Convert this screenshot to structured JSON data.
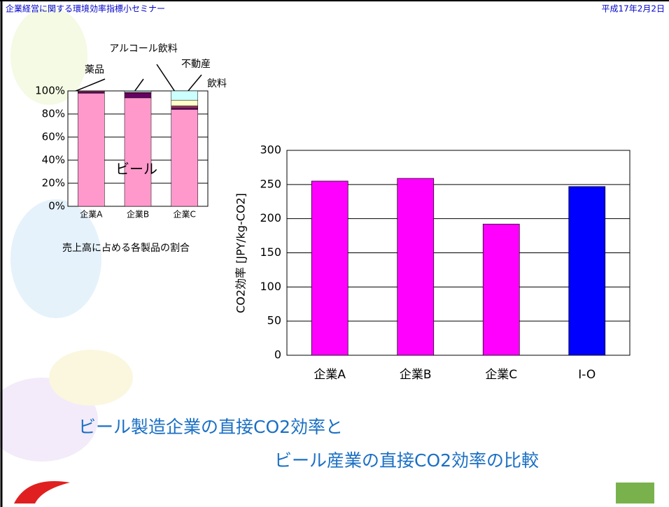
{
  "header": {
    "left": "企業経営に関する環境効率指標小セミナー",
    "right": "平成17年2月2日"
  },
  "chart_data": [
    {
      "type": "stacked-bar",
      "caption": "売上高に占める各製品の割合",
      "categories": [
        "企業A",
        "企業B",
        "企業C"
      ],
      "series": [
        {
          "name": "ビール",
          "color": "#ff99cc",
          "values": [
            98,
            94,
            84
          ]
        },
        {
          "name": "アルコール飲料",
          "color": "#660066",
          "values": [
            1,
            4,
            1
          ]
        },
        {
          "name": "薬品",
          "color": "#993366",
          "values": [
            1,
            1,
            2
          ]
        },
        {
          "name": "不動産",
          "color": "#ffffcc",
          "values": [
            0,
            0,
            5
          ]
        },
        {
          "name": "飲料",
          "color": "#ccffff",
          "values": [
            0,
            1,
            8
          ]
        }
      ],
      "ylim": [
        0,
        100
      ],
      "yticks": [
        {
          "value": 0,
          "label": "0%"
        },
        {
          "value": 20,
          "label": "20%"
        },
        {
          "value": 40,
          "label": "40%"
        },
        {
          "value": 60,
          "label": "60%"
        },
        {
          "value": 80,
          "label": "80%"
        },
        {
          "value": 100,
          "label": "100%"
        }
      ],
      "grid": true
    },
    {
      "type": "bar",
      "ylabel": "CO2効率 [JPY/kg-CO2]",
      "categories": [
        "企業A",
        "企業B",
        "企業C",
        "I-O"
      ],
      "values": [
        255,
        259,
        192,
        247
      ],
      "colors": [
        "#ff00ff",
        "#ff00ff",
        "#ff00ff",
        "#0000ff"
      ],
      "ylim": [
        0,
        300
      ],
      "yticks": [
        0,
        50,
        100,
        150,
        200,
        250,
        300
      ],
      "grid": true
    }
  ],
  "footer_title": [
    "ビール製造企業の直接CO2効率と",
    "ビール産業の直接CO2効率の比較"
  ]
}
